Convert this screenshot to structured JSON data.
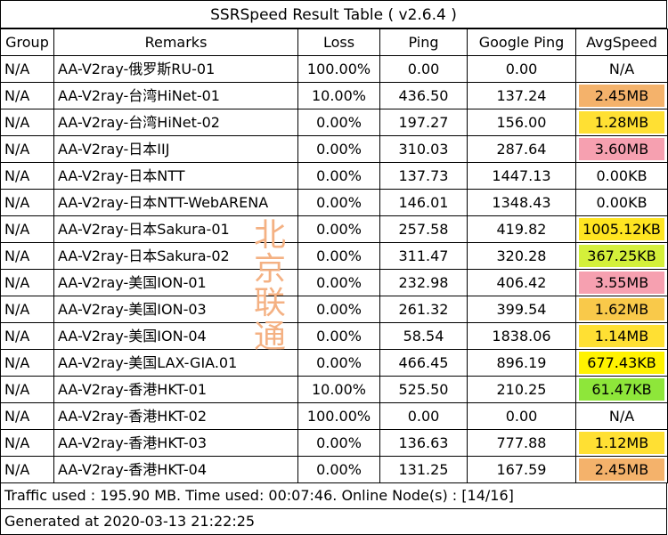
{
  "title": "SSRSpeed Result Table ( v2.6.4 )",
  "headers": [
    "Group",
    "Remarks",
    "Loss",
    "Ping",
    "Google Ping",
    "AvgSpeed"
  ],
  "rows": [
    {
      "group": "N/A",
      "remarks": "AA-V2ray-俄罗斯RU-01",
      "loss": "100.00%",
      "ping": "0.00",
      "gping": "0.00",
      "speed": "N/A",
      "color": ""
    },
    {
      "group": "N/A",
      "remarks": "AA-V2ray-台湾HiNet-01",
      "loss": "10.00%",
      "ping": "436.50",
      "gping": "137.24",
      "speed": "2.45MB",
      "color": "#f4b26b"
    },
    {
      "group": "N/A",
      "remarks": "AA-V2ray-台湾HiNet-02",
      "loss": "0.00%",
      "ping": "197.27",
      "gping": "156.00",
      "speed": "1.28MB",
      "color": "#ffe033"
    },
    {
      "group": "N/A",
      "remarks": "AA-V2ray-日本IIJ",
      "loss": "0.00%",
      "ping": "310.03",
      "gping": "287.64",
      "speed": "3.60MB",
      "color": "#f6a0b0"
    },
    {
      "group": "N/A",
      "remarks": "AA-V2ray-日本NTT",
      "loss": "0.00%",
      "ping": "137.73",
      "gping": "1447.13",
      "speed": "0.00KB",
      "color": ""
    },
    {
      "group": "N/A",
      "remarks": "AA-V2ray-日本NTT-WebARENA",
      "loss": "0.00%",
      "ping": "146.01",
      "gping": "1348.43",
      "speed": "0.00KB",
      "color": ""
    },
    {
      "group": "N/A",
      "remarks": "AA-V2ray-日本Sakura-01",
      "loss": "0.00%",
      "ping": "257.58",
      "gping": "419.82",
      "speed": "1005.12KB",
      "color": "#ffe521"
    },
    {
      "group": "N/A",
      "remarks": "AA-V2ray-日本Sakura-02",
      "loss": "0.00%",
      "ping": "311.47",
      "gping": "320.28",
      "speed": "367.25KB",
      "color": "#d4f03a"
    },
    {
      "group": "N/A",
      "remarks": "AA-V2ray-美国ION-01",
      "loss": "0.00%",
      "ping": "232.98",
      "gping": "406.42",
      "speed": "3.55MB",
      "color": "#f6a0b0"
    },
    {
      "group": "N/A",
      "remarks": "AA-V2ray-美国ION-03",
      "loss": "0.00%",
      "ping": "261.32",
      "gping": "399.54",
      "speed": "1.62MB",
      "color": "#f9c94a"
    },
    {
      "group": "N/A",
      "remarks": "AA-V2ray-美国ION-04",
      "loss": "0.00%",
      "ping": "58.54",
      "gping": "1838.06",
      "speed": "1.14MB",
      "color": "#ffe033"
    },
    {
      "group": "N/A",
      "remarks": "AA-V2ray-美国LAX-GIA.01",
      "loss": "0.00%",
      "ping": "466.45",
      "gping": "896.19",
      "speed": "677.43KB",
      "color": "#fff200"
    },
    {
      "group": "N/A",
      "remarks": "AA-V2ray-香港HKT-01",
      "loss": "10.00%",
      "ping": "525.50",
      "gping": "210.25",
      "speed": "61.47KB",
      "color": "#8ee63a"
    },
    {
      "group": "N/A",
      "remarks": "AA-V2ray-香港HKT-02",
      "loss": "100.00%",
      "ping": "0.00",
      "gping": "0.00",
      "speed": "N/A",
      "color": ""
    },
    {
      "group": "N/A",
      "remarks": "AA-V2ray-香港HKT-03",
      "loss": "0.00%",
      "ping": "136.63",
      "gping": "777.88",
      "speed": "1.12MB",
      "color": "#ffe033"
    },
    {
      "group": "N/A",
      "remarks": "AA-V2ray-香港HKT-04",
      "loss": "0.00%",
      "ping": "131.25",
      "gping": "167.59",
      "speed": "2.45MB",
      "color": "#f4b26b"
    }
  ],
  "footer": {
    "traffic": "Traffic used : 195.90 MB. Time used: 00:07:46. Online Node(s) : [14/16]",
    "generated": "Generated at 2020-03-13 21:22:25"
  },
  "watermark": [
    "北",
    "京",
    "联",
    "通"
  ]
}
